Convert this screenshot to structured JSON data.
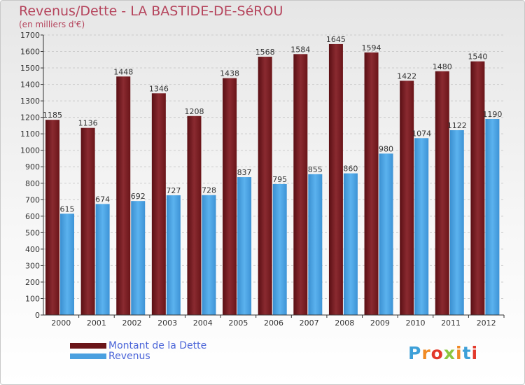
{
  "title": "Revenus/Dette - LA BASTIDE-DE-SéROU",
  "subtitle": "(en milliers d'€)",
  "logo": {
    "text": "Proxiti",
    "colors": [
      "#3ea0d8",
      "#f08a24",
      "#e2382a",
      "#8cc63f",
      "#f08a24",
      "#3ea0d8",
      "#e2382a"
    ]
  },
  "colors": {
    "debt": "#7a1f24",
    "revenue": "#4aa0e0",
    "axis": "#333333",
    "grid": "#cccccc"
  },
  "chart_data": {
    "type": "bar",
    "title": "Revenus/Dette - LA BASTIDE-DE-SéROU",
    "subtitle": "(en milliers d'€)",
    "categories": [
      "2000",
      "2001",
      "2002",
      "2003",
      "2004",
      "2005",
      "2006",
      "2007",
      "2008",
      "2009",
      "2010",
      "2011",
      "2012"
    ],
    "series": [
      {
        "name": "Montant de la Dette",
        "values": [
          1185,
          1136,
          1448,
          1346,
          1208,
          1438,
          1568,
          1584,
          1645,
          1594,
          1422,
          1480,
          1540
        ]
      },
      {
        "name": "Revenus",
        "values": [
          615,
          674,
          692,
          727,
          728,
          837,
          795,
          855,
          860,
          980,
          1074,
          1122,
          1190
        ]
      }
    ],
    "ylim": [
      0,
      1700
    ],
    "ytick_step": 100,
    "grid": true,
    "legend": "bottom-left"
  }
}
